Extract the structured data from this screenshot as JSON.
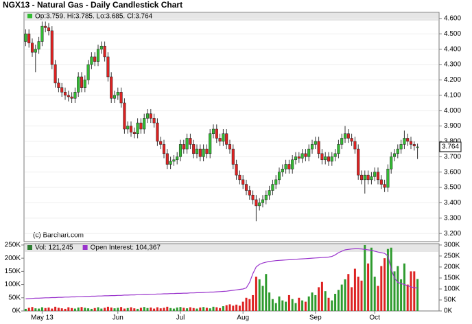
{
  "chart_data": [
    {
      "type": "candlestick",
      "title": "NGX13 - Natural Gas - Daily Candlestick Chart",
      "legend": "Op:3.759, Hi:3.785, Lo:3.685, Cl:3.764",
      "watermark": "(c) Barchart.com",
      "categories": [
        null,
        null,
        null,
        null,
        null,
        "May 13",
        null,
        null,
        null,
        null,
        null,
        null,
        null,
        null,
        null,
        null,
        null,
        null,
        null,
        null,
        null,
        null,
        null,
        null,
        null,
        null,
        null,
        null,
        "Jun",
        null,
        null,
        null,
        null,
        null,
        null,
        null,
        null,
        null,
        null,
        null,
        null,
        null,
        null,
        null,
        null,
        null,
        null,
        "Jul",
        null,
        null,
        null,
        null,
        null,
        null,
        null,
        null,
        null,
        null,
        null,
        null,
        null,
        null,
        null,
        null,
        null,
        null,
        "Aug",
        null,
        null,
        null,
        null,
        null,
        null,
        null,
        null,
        null,
        null,
        null,
        null,
        null,
        null,
        null,
        null,
        null,
        null,
        null,
        null,
        null,
        "Sep",
        null,
        null,
        null,
        null,
        null,
        null,
        null,
        null,
        null,
        null,
        null,
        null,
        null,
        null,
        null,
        null,
        null,
        "Oct",
        null,
        null,
        null,
        null,
        null,
        null,
        null,
        null,
        null,
        null,
        null,
        null,
        null
      ],
      "open": [
        4.45,
        4.5,
        4.44,
        4.38,
        4.4,
        4.45,
        4.55,
        4.54,
        4.52,
        4.3,
        4.18,
        4.15,
        4.12,
        4.1,
        4.09,
        4.08,
        4.12,
        4.22,
        4.15,
        4.2,
        4.3,
        4.35,
        4.32,
        4.4,
        4.42,
        4.35,
        4.22,
        4.08,
        4.1,
        4.12,
        4.05,
        3.88,
        3.9,
        3.86,
        3.85,
        3.92,
        3.88,
        3.95,
        3.98,
        3.95,
        3.92,
        3.8,
        3.78,
        3.72,
        3.65,
        3.67,
        3.68,
        3.7,
        3.78,
        3.75,
        3.82,
        3.78,
        3.72,
        3.75,
        3.7,
        3.75,
        3.72,
        3.85,
        3.88,
        3.82,
        3.8,
        3.85,
        3.78,
        3.75,
        3.65,
        3.58,
        3.55,
        3.52,
        3.48,
        3.45,
        3.42,
        3.38,
        3.4,
        3.42,
        3.45,
        3.48,
        3.52,
        3.55,
        3.6,
        3.62,
        3.65,
        3.62,
        3.68,
        3.7,
        3.69,
        3.72,
        3.7,
        3.75,
        3.78,
        3.8,
        3.72,
        3.68,
        3.7,
        3.67,
        3.7,
        3.72,
        3.78,
        3.82,
        3.85,
        3.82,
        3.8,
        3.75,
        3.58,
        3.55,
        3.58,
        3.55,
        3.57,
        3.6,
        3.55,
        3.52,
        3.5,
        3.62,
        3.7,
        3.72,
        3.75,
        3.78,
        3.82,
        3.8,
        3.78,
        3.759
      ],
      "high": [
        4.53,
        4.53,
        4.47,
        4.43,
        4.48,
        4.58,
        4.58,
        4.57,
        4.55,
        4.33,
        4.21,
        4.18,
        4.15,
        4.13,
        4.12,
        4.15,
        4.25,
        4.25,
        4.23,
        4.33,
        4.38,
        4.38,
        4.43,
        4.45,
        4.45,
        4.38,
        4.25,
        4.13,
        4.15,
        4.15,
        4.08,
        3.93,
        3.93,
        3.89,
        3.95,
        3.95,
        3.98,
        4.01,
        4.01,
        3.98,
        3.95,
        3.83,
        3.81,
        3.75,
        3.7,
        3.71,
        3.73,
        3.81,
        3.81,
        3.85,
        3.85,
        3.81,
        3.78,
        3.78,
        3.78,
        3.78,
        3.88,
        3.91,
        3.91,
        3.85,
        3.88,
        3.88,
        3.81,
        3.78,
        3.68,
        3.61,
        3.58,
        3.55,
        3.51,
        3.48,
        3.45,
        3.43,
        3.45,
        3.48,
        3.51,
        3.55,
        3.58,
        3.63,
        3.65,
        3.68,
        3.68,
        3.71,
        3.73,
        3.73,
        3.75,
        3.75,
        3.78,
        3.81,
        3.83,
        3.83,
        3.75,
        3.73,
        3.73,
        3.73,
        3.75,
        3.81,
        3.85,
        3.9,
        3.88,
        3.85,
        3.83,
        3.78,
        3.61,
        3.61,
        3.61,
        3.6,
        3.63,
        3.63,
        3.58,
        3.55,
        3.65,
        3.73,
        3.75,
        3.78,
        3.81,
        3.87,
        3.85,
        3.83,
        3.8,
        3.785
      ],
      "low": [
        4.42,
        4.41,
        4.35,
        4.25,
        4.37,
        4.42,
        4.51,
        4.49,
        4.27,
        4.15,
        4.12,
        4.09,
        4.07,
        4.06,
        4.05,
        4.05,
        4.09,
        4.12,
        4.12,
        4.17,
        4.27,
        4.29,
        4.29,
        4.37,
        4.32,
        4.19,
        4.05,
        4.05,
        4.07,
        4.02,
        3.85,
        3.85,
        3.83,
        3.82,
        3.82,
        3.85,
        3.85,
        3.92,
        3.92,
        3.89,
        3.77,
        3.75,
        3.69,
        3.62,
        3.62,
        3.64,
        3.65,
        3.67,
        3.72,
        3.72,
        3.75,
        3.69,
        3.69,
        3.67,
        3.67,
        3.69,
        3.69,
        3.82,
        3.79,
        3.77,
        3.77,
        3.75,
        3.72,
        3.62,
        3.55,
        3.52,
        3.49,
        3.45,
        3.42,
        3.39,
        3.28,
        3.35,
        3.37,
        3.39,
        3.42,
        3.45,
        3.49,
        3.52,
        3.57,
        3.59,
        3.59,
        3.59,
        3.65,
        3.66,
        3.66,
        3.67,
        3.67,
        3.72,
        3.75,
        3.69,
        3.65,
        3.65,
        3.64,
        3.64,
        3.67,
        3.69,
        3.75,
        3.79,
        3.79,
        3.77,
        3.72,
        3.55,
        3.52,
        3.46,
        3.52,
        3.52,
        3.54,
        3.52,
        3.49,
        3.47,
        3.47,
        3.59,
        3.67,
        3.69,
        3.72,
        3.75,
        3.77,
        3.75,
        3.74,
        3.685
      ],
      "close": [
        4.5,
        4.44,
        4.38,
        4.4,
        4.45,
        4.55,
        4.54,
        4.52,
        4.3,
        4.18,
        4.15,
        4.12,
        4.1,
        4.09,
        4.08,
        4.12,
        4.22,
        4.15,
        4.2,
        4.3,
        4.35,
        4.32,
        4.4,
        4.42,
        4.35,
        4.22,
        4.08,
        4.1,
        4.12,
        4.05,
        3.88,
        3.9,
        3.86,
        3.85,
        3.92,
        3.88,
        3.95,
        3.98,
        3.95,
        3.92,
        3.8,
        3.78,
        3.72,
        3.65,
        3.67,
        3.68,
        3.7,
        3.78,
        3.75,
        3.82,
        3.78,
        3.72,
        3.75,
        3.7,
        3.75,
        3.72,
        3.85,
        3.88,
        3.82,
        3.8,
        3.85,
        3.78,
        3.75,
        3.65,
        3.58,
        3.55,
        3.52,
        3.48,
        3.45,
        3.42,
        3.38,
        3.4,
        3.42,
        3.45,
        3.48,
        3.52,
        3.55,
        3.6,
        3.62,
        3.65,
        3.62,
        3.68,
        3.7,
        3.69,
        3.72,
        3.7,
        3.75,
        3.78,
        3.8,
        3.72,
        3.68,
        3.7,
        3.67,
        3.7,
        3.72,
        3.78,
        3.82,
        3.85,
        3.82,
        3.8,
        3.75,
        3.58,
        3.55,
        3.58,
        3.55,
        3.57,
        3.6,
        3.55,
        3.52,
        3.5,
        3.62,
        3.7,
        3.72,
        3.75,
        3.78,
        3.82,
        3.8,
        3.78,
        3.77,
        3.764
      ],
      "up_color": "#33bb33",
      "down_color": "#dd2222",
      "ylim": [
        3.147,
        4.64
      ],
      "yticks": [
        {
          "value": 3.2,
          "label": "3.200"
        },
        {
          "value": 3.3,
          "label": "3.300"
        },
        {
          "value": 3.4,
          "label": "3.400"
        },
        {
          "value": 3.5,
          "label": "3.500"
        },
        {
          "value": 3.6,
          "label": "3.600"
        },
        {
          "value": 3.7,
          "label": "3.700"
        },
        {
          "value": 3.8,
          "label": "3.800"
        },
        {
          "value": 3.9,
          "label": "3.900"
        },
        {
          "value": 4.0,
          "label": "4.000"
        },
        {
          "value": 4.1,
          "label": "4.100"
        },
        {
          "value": 4.2,
          "label": "4.200"
        },
        {
          "value": 4.3,
          "label": "4.300"
        },
        {
          "value": 4.4,
          "label": "4.400"
        },
        {
          "value": 4.5,
          "label": "4.500"
        },
        {
          "value": 4.6,
          "label": "4.600"
        }
      ]
    },
    {
      "type": "volume",
      "series": [
        {
          "name": "Vol: 121,245",
          "color": "#2e7d32",
          "values": [
            8000,
            12000,
            15000,
            10000,
            9000,
            14000,
            11000,
            13000,
            9000,
            16000,
            12000,
            10000,
            8000,
            14000,
            11000,
            9000,
            13000,
            15000,
            12000,
            10000,
            8000,
            11000,
            14000,
            9000,
            12000,
            16000,
            13000,
            10000,
            12000,
            15000,
            9000,
            11000,
            14000,
            10000,
            8000,
            12000,
            15000,
            11000,
            13000,
            9000,
            14000,
            10000,
            12000,
            16000,
            11000,
            9000,
            13000,
            15000,
            12000,
            10000,
            14000,
            11000,
            9000,
            13000,
            15000,
            12000,
            10000,
            16000,
            14000,
            11000,
            18000,
            22000,
            25000,
            20000,
            24000,
            20000,
            35000,
            50000,
            45000,
            60000,
            130000,
            120000,
            95000,
            140000,
            70000,
            45000,
            30000,
            55000,
            40000,
            35000,
            60000,
            45000,
            30000,
            50000,
            40000,
            35000,
            55000,
            70000,
            60000,
            90000,
            110000,
            75000,
            50000,
            40000,
            65000,
            80000,
            100000,
            120000,
            140000,
            90000,
            160000,
            130000,
            115000,
            250000,
            180000,
            240000,
            130000,
            95000,
            170000,
            200000,
            235000,
            240000,
            150000,
            170000,
            120000,
            180000,
            100000,
            150000,
            150000,
            121245
          ]
        },
        {
          "name": "Open Interest: 104,367",
          "color": "#9933cc",
          "axis": "y2",
          "values": [
            55000,
            56000,
            57000,
            58000,
            58000,
            59000,
            60000,
            60000,
            61000,
            61000,
            62000,
            62000,
            63000,
            63000,
            64000,
            64000,
            65000,
            65000,
            66000,
            66000,
            67000,
            67000,
            68000,
            68000,
            69000,
            69000,
            70000,
            70000,
            71000,
            71000,
            72000,
            72000,
            73000,
            73000,
            74000,
            74000,
            75000,
            75000,
            76000,
            76000,
            77000,
            77000,
            78000,
            78000,
            79000,
            79000,
            80000,
            80000,
            81000,
            81000,
            82000,
            82000,
            83000,
            83000,
            84000,
            85000,
            86000,
            86000,
            87000,
            88000,
            89000,
            90000,
            92000,
            94000,
            96000,
            98000,
            100000,
            105000,
            130000,
            170000,
            200000,
            212000,
            218000,
            222000,
            225000,
            227000,
            229000,
            230000,
            231000,
            232000,
            233000,
            234000,
            235000,
            236000,
            237000,
            238000,
            239000,
            240000,
            241000,
            242000,
            243000,
            244000,
            245000,
            248000,
            255000,
            265000,
            272000,
            278000,
            280000,
            282000,
            283000,
            283000,
            282000,
            280000,
            278000,
            276000,
            272000,
            268000,
            265000,
            262000,
            250000,
            190000,
            150000,
            130000,
            125000,
            120000,
            115000,
            110000,
            106000,
            104367
          ]
        }
      ],
      "ylim": [
        0,
        255000
      ],
      "yticks": [
        {
          "value": 0,
          "label": "0K"
        },
        {
          "value": 50000,
          "label": "50K"
        },
        {
          "value": 100000,
          "label": "100K"
        },
        {
          "value": 150000,
          "label": "150K"
        },
        {
          "value": 200000,
          "label": "200K"
        },
        {
          "value": 250000,
          "label": "250K"
        }
      ],
      "y2lim": [
        0,
        306000
      ],
      "y2ticks": [
        {
          "value": 0,
          "label": "0K"
        },
        {
          "value": 50000,
          "label": "50K"
        },
        {
          "value": 100000,
          "label": "100K"
        },
        {
          "value": 150000,
          "label": "150K"
        },
        {
          "value": 200000,
          "label": "200K"
        },
        {
          "value": 250000,
          "label": "250K"
        },
        {
          "value": 300000,
          "label": "300K"
        }
      ]
    }
  ]
}
